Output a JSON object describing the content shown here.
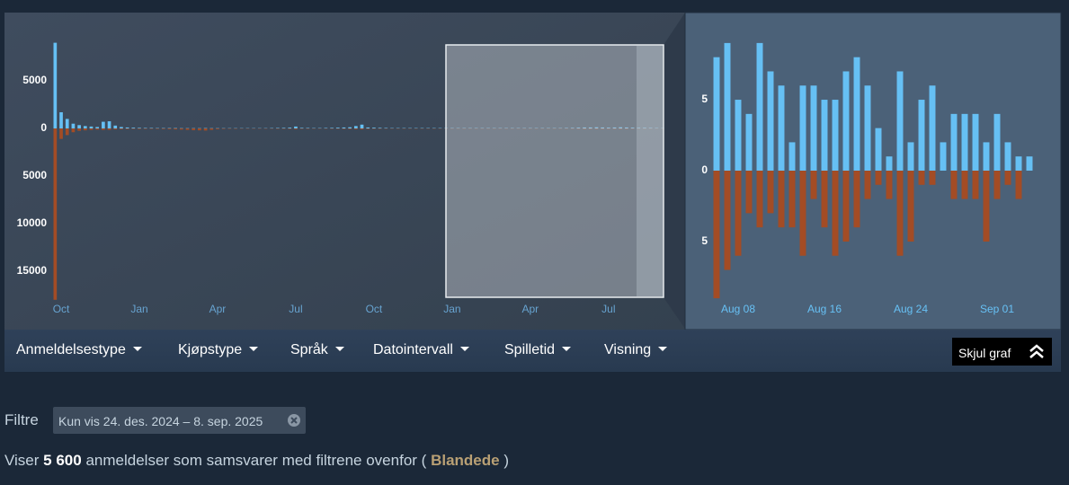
{
  "chart_data": [
    {
      "type": "bar",
      "categories": [
        null,
        "Oct",
        null,
        null,
        null,
        null,
        null,
        null,
        null,
        null,
        null,
        null,
        null,
        null,
        "Jan",
        null,
        null,
        null,
        null,
        null,
        null,
        null,
        null,
        null,
        null,
        null,
        null,
        "Apr",
        null,
        null,
        null,
        null,
        null,
        null,
        null,
        null,
        null,
        null,
        null,
        null,
        "Jul",
        null,
        null,
        null,
        null,
        null,
        null,
        null,
        null,
        null,
        null,
        null,
        null,
        "Oct",
        null,
        null,
        null,
        null,
        null,
        null,
        null,
        null,
        null,
        null,
        null,
        null,
        "Jan",
        null,
        null,
        null,
        null,
        null,
        null,
        null,
        null,
        null,
        null,
        null,
        null,
        "Apr",
        null,
        null,
        null,
        null,
        null,
        null,
        null,
        null,
        null,
        null,
        null,
        null,
        "Jul",
        null,
        null,
        null,
        null,
        null,
        null,
        null,
        null,
        null
      ],
      "series": [
        {
          "color": "#66c0f4",
          "values": [
            9000,
            1700,
            1000,
            500,
            350,
            250,
            200,
            150,
            700,
            750,
            300,
            150,
            100,
            80,
            60,
            50,
            50,
            40,
            40,
            40,
            40,
            30,
            30,
            30,
            30,
            40,
            30,
            30,
            30,
            30,
            30,
            30,
            30,
            30,
            30,
            30,
            40,
            50,
            60,
            80,
            200,
            60,
            50,
            40,
            40,
            50,
            60,
            80,
            100,
            120,
            250,
            400,
            100,
            80,
            60,
            50,
            40,
            40,
            40,
            40,
            40,
            40,
            40,
            40,
            40,
            40,
            40,
            40,
            40,
            40,
            40,
            40,
            40,
            40,
            40,
            40,
            40,
            40,
            40,
            40,
            40,
            40,
            40,
            40,
            40,
            50,
            60,
            80,
            100,
            100,
            120,
            100,
            80,
            100,
            120,
            100,
            80,
            60,
            60,
            50,
            40,
            30
          ]
        },
        {
          "color": "#a34c25",
          "values": [
            -18000,
            -1100,
            -700,
            -400,
            -250,
            -200,
            -150,
            -120,
            -150,
            -150,
            -100,
            -80,
            -60,
            -50,
            -60,
            -50,
            -50,
            -50,
            -60,
            -80,
            -100,
            -120,
            -150,
            -180,
            -200,
            -220,
            -150,
            -80,
            -50,
            -40,
            -40,
            -30,
            -30,
            -30,
            -30,
            -30,
            -30,
            -40,
            -40,
            -50,
            -80,
            -40,
            -40,
            -30,
            -30,
            -30,
            -40,
            -40,
            -50,
            -60,
            -80,
            -100,
            -50,
            -40,
            -40,
            -30,
            -30,
            -30,
            -30,
            -30,
            -30,
            -30,
            -30,
            -30,
            -30,
            -30,
            -30,
            -30,
            -30,
            -30,
            -30,
            -30,
            -30,
            -30,
            -30,
            -30,
            -30,
            -30,
            -30,
            -30,
            -30,
            -30,
            -30,
            -30,
            -30,
            -30,
            -40,
            -50,
            -60,
            -60,
            -60,
            -60,
            -50,
            -50,
            -60,
            -50,
            -40,
            -30,
            -30,
            -30,
            -20,
            -20
          ]
        }
      ],
      "ylim": [
        -18000,
        9000
      ],
      "yticks": [
        5000,
        0,
        {
          "value": -5000,
          "label": "5000"
        },
        {
          "value": -10000,
          "label": "10000"
        },
        {
          "value": -15000,
          "label": "15000"
        }
      ]
    },
    {
      "type": "bar",
      "categories": [
        null,
        null,
        "Aug 08",
        null,
        null,
        null,
        null,
        null,
        null,
        null,
        "Aug 16",
        null,
        null,
        null,
        null,
        null,
        null,
        null,
        "Aug 24",
        null,
        null,
        null,
        null,
        null,
        null,
        null,
        "Sep 01",
        null,
        null,
        null
      ],
      "series": [
        {
          "color": "#66c0f4",
          "values": [
            8,
            9,
            5,
            4,
            9,
            7,
            6,
            2,
            6,
            6,
            5,
            5,
            7,
            8,
            6,
            3,
            1,
            7,
            2,
            5,
            6,
            2,
            4,
            4,
            4,
            2,
            4,
            2,
            1,
            1
          ]
        },
        {
          "color": "#a34c25",
          "values": [
            -9,
            -7,
            -6,
            -3,
            -4,
            -3,
            -4,
            -4,
            -6,
            -2,
            -4,
            -6,
            -5,
            -4,
            -2,
            -1,
            -2,
            -6,
            -5,
            -1,
            -1,
            0,
            -2,
            -2,
            -2,
            -5,
            -2,
            -1,
            -2,
            0
          ]
        }
      ],
      "ylim": [
        -9.5,
        9.5
      ],
      "yticks": [
        5,
        0,
        {
          "value": -5,
          "label": "5"
        }
      ]
    }
  ],
  "menu": {
    "items": [
      "Anmeldelsestype",
      "Kjøpstype",
      "Språk",
      "Datointervall",
      "Spilletid",
      "Visning"
    ],
    "button": "Skjul graf"
  },
  "filter": {
    "label": "Filtre",
    "chip": "Kun vis 24. des. 2024 – 8. sep. 2025"
  },
  "summary": {
    "prefix": "Viser",
    "count": "5 600",
    "middle": "anmeldelser som samsvarer med filtrene ovenfor (",
    "rating": "Blandede",
    "suffix": ")"
  }
}
